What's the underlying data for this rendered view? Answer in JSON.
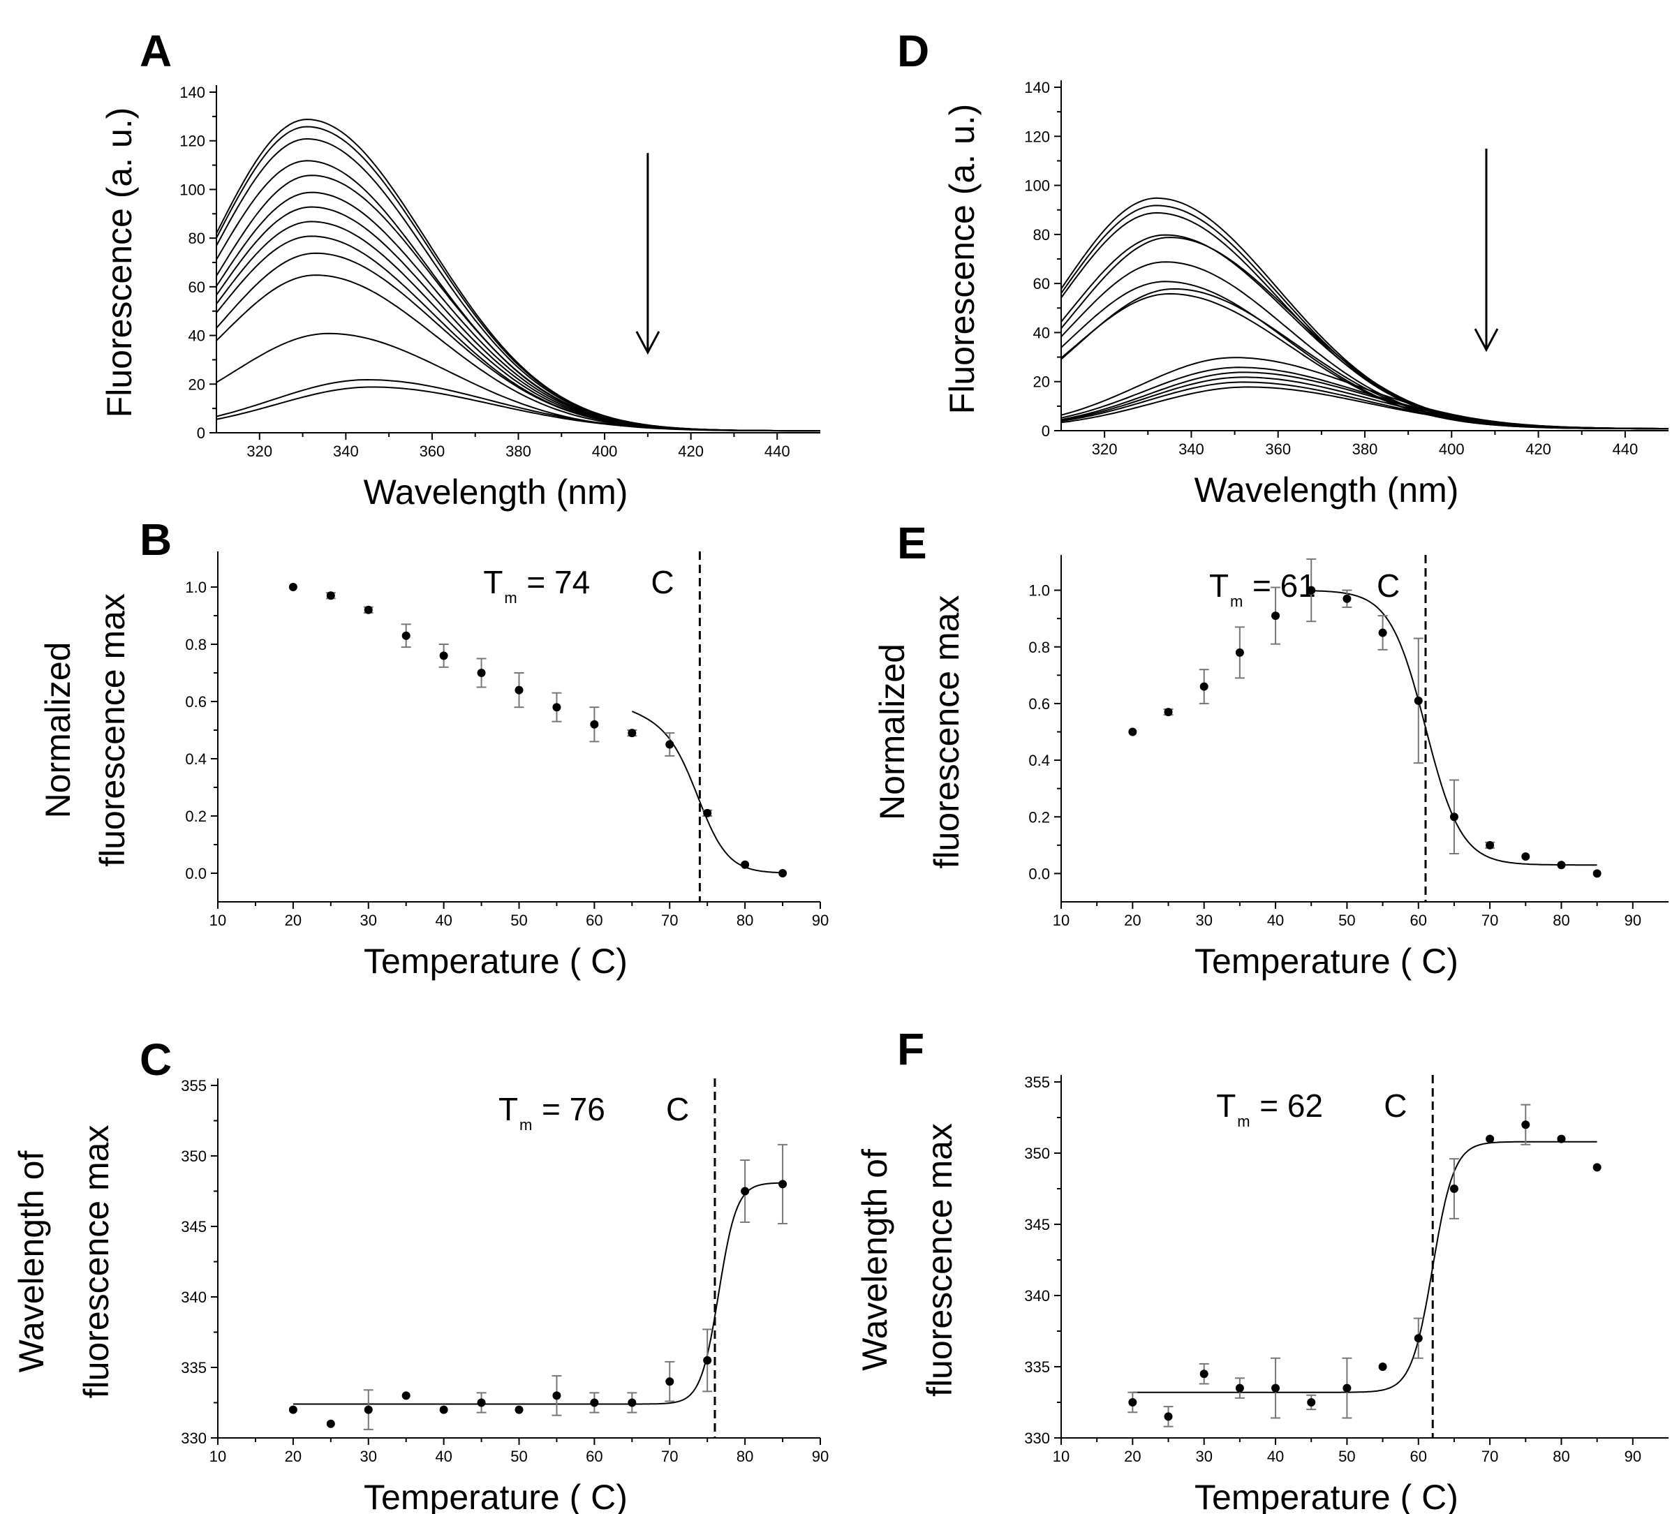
{
  "figure": {
    "panels": [
      {
        "id": "A",
        "letter": "A",
        "type": "spectra",
        "xlabel": "Wavelength (nm)",
        "ylabel": "Fluorescence (a. u.)",
        "xlim": [
          310,
          450
        ],
        "ylim": [
          0,
          140
        ],
        "xticks": [
          320,
          340,
          360,
          380,
          400,
          420,
          440
        ],
        "yticks": [
          0,
          20,
          40,
          60,
          80,
          100,
          120,
          140
        ],
        "arrow": {
          "x": 410,
          "y_from": 115,
          "y_to": 33
        },
        "spectra": [
          {
            "peak_nm": 331,
            "peak": 128
          },
          {
            "peak_nm": 331,
            "peak": 125
          },
          {
            "peak_nm": 331,
            "peak": 120
          },
          {
            "peak_nm": 331,
            "peak": 111
          },
          {
            "peak_nm": 332,
            "peak": 105
          },
          {
            "peak_nm": 332,
            "peak": 98
          },
          {
            "peak_nm": 332,
            "peak": 92
          },
          {
            "peak_nm": 332,
            "peak": 86
          },
          {
            "peak_nm": 332,
            "peak": 80
          },
          {
            "peak_nm": 333,
            "peak": 73
          },
          {
            "peak_nm": 333,
            "peak": 64
          },
          {
            "peak_nm": 336,
            "peak": 40
          },
          {
            "peak_nm": 345,
            "peak": 21
          },
          {
            "peak_nm": 346,
            "peak": 18
          }
        ]
      },
      {
        "id": "D",
        "letter": "D",
        "type": "spectra",
        "xlabel": "Wavelength (nm)",
        "ylabel": "Fluorescence (a. u.)",
        "xlim": [
          310,
          450
        ],
        "ylim": [
          0,
          140
        ],
        "xticks": [
          320,
          340,
          360,
          380,
          400,
          420,
          440
        ],
        "yticks": [
          0,
          20,
          40,
          60,
          80,
          100,
          120,
          140
        ],
        "arrow": {
          "x": 408,
          "y_from": 115,
          "y_to": 33
        },
        "spectra": [
          {
            "peak_nm": 332,
            "peak": 94
          },
          {
            "peak_nm": 332,
            "peak": 91
          },
          {
            "peak_nm": 332,
            "peak": 88
          },
          {
            "peak_nm": 334,
            "peak": 79
          },
          {
            "peak_nm": 335,
            "peak": 78
          },
          {
            "peak_nm": 334,
            "peak": 68
          },
          {
            "peak_nm": 334,
            "peak": 60
          },
          {
            "peak_nm": 335,
            "peak": 55
          },
          {
            "peak_nm": 336,
            "peak": 57
          },
          {
            "peak_nm": 350,
            "peak": 29
          },
          {
            "peak_nm": 351,
            "peak": 25
          },
          {
            "peak_nm": 352,
            "peak": 23
          },
          {
            "peak_nm": 352,
            "peak": 21
          },
          {
            "peak_nm": 352,
            "peak": 19
          },
          {
            "peak_nm": 353,
            "peak": 17
          }
        ]
      },
      {
        "id": "B",
        "letter": "B",
        "type": "melt",
        "xlabel": "Temperature ( C)",
        "ylabel": [
          "Normalized",
          "fluorescence max"
        ],
        "xlim": [
          10,
          90
        ],
        "ylim": [
          -0.1,
          1.1
        ],
        "xticks": [
          10,
          20,
          30,
          40,
          50,
          60,
          70,
          80,
          90
        ],
        "yticks": [
          0.0,
          0.2,
          0.4,
          0.6,
          0.8,
          1.0
        ],
        "ytick_labels": [
          "0.0",
          "0.2",
          "0.4",
          "0.6",
          "0.8",
          "1.0"
        ],
        "tm_label": {
          "prefix": "T",
          "sub": "m",
          "value": " = 74",
          "unit": "C"
        },
        "tm": 74,
        "x": [
          20,
          25,
          30,
          35,
          40,
          45,
          50,
          55,
          60,
          65,
          70,
          75,
          80,
          85
        ],
        "y": [
          1.0,
          0.97,
          0.92,
          0.83,
          0.76,
          0.7,
          0.64,
          0.58,
          0.52,
          0.49,
          0.45,
          0.21,
          0.03,
          0.0
        ],
        "err": [
          0.0,
          0.01,
          0.01,
          0.04,
          0.04,
          0.05,
          0.06,
          0.05,
          0.06,
          0.01,
          0.04,
          0.01,
          0.0,
          0.0
        ],
        "fit": {
          "model": "sigmoid",
          "from": 65,
          "to": 85,
          "top": 0.5,
          "bottom": 0.0,
          "tm": 74,
          "slope": 2.0,
          "pre_slope": 0.008
        }
      },
      {
        "id": "E",
        "letter": "E",
        "type": "melt",
        "xlabel": "Temperature ( C)",
        "ylabel": [
          "Normalized",
          "fluorescence max"
        ],
        "xlim": [
          10,
          95
        ],
        "ylim": [
          -0.1,
          1.1
        ],
        "xticks": [
          10,
          20,
          30,
          40,
          50,
          60,
          70,
          80,
          90
        ],
        "yticks": [
          0.0,
          0.2,
          0.4,
          0.6,
          0.8,
          1.0
        ],
        "ytick_labels": [
          "0.0",
          "0.2",
          "0.4",
          "0.6",
          "0.8",
          "1.0"
        ],
        "tm_label": {
          "prefix": "T",
          "sub": "m",
          "value": " = 61",
          "unit": "C"
        },
        "tm": 61,
        "x": [
          20,
          25,
          30,
          35,
          40,
          45,
          50,
          55,
          60,
          65,
          70,
          75,
          80,
          85
        ],
        "y": [
          0.5,
          0.57,
          0.66,
          0.78,
          0.91,
          1.0,
          0.97,
          0.85,
          0.61,
          0.2,
          0.1,
          0.06,
          0.03,
          0.0
        ],
        "err": [
          0.0,
          0.01,
          0.06,
          0.09,
          0.1,
          0.11,
          0.03,
          0.06,
          0.22,
          0.13,
          0.01,
          0.0,
          0.0,
          0.0
        ],
        "fit": {
          "model": "sigmoid",
          "from": 45,
          "to": 85,
          "top": 1.0,
          "bottom": 0.03,
          "tm": 61,
          "slope": 2.5,
          "pre_slope": 0.0
        }
      },
      {
        "id": "C",
        "letter": "C",
        "type": "melt",
        "xlabel": "Temperature ( C)",
        "ylabel": [
          "Wavelength of",
          "fluorescence max"
        ],
        "xlim": [
          10,
          90
        ],
        "ylim": [
          330,
          355
        ],
        "xticks": [
          10,
          20,
          30,
          40,
          50,
          60,
          70,
          80,
          90
        ],
        "yticks": [
          330,
          335,
          340,
          345,
          350,
          355
        ],
        "ytick_labels": [
          "330",
          "335",
          "340",
          "345",
          "350",
          "355"
        ],
        "tm_label": {
          "prefix": "T",
          "sub": "m",
          "value": " = 76",
          "unit": "C"
        },
        "tm": 76,
        "x": [
          20,
          25,
          30,
          35,
          40,
          45,
          50,
          55,
          60,
          65,
          70,
          75,
          80,
          85
        ],
        "y": [
          332,
          331,
          332,
          333,
          332,
          332.5,
          332,
          333,
          332.5,
          332.5,
          334,
          335.5,
          347.5,
          348
        ],
        "err": [
          0,
          0,
          1.4,
          0,
          0,
          0.7,
          0,
          1.4,
          0.7,
          0.7,
          1.4,
          2.2,
          2.2,
          2.8
        ],
        "fit": {
          "model": "sigmoid",
          "from": 20,
          "to": 85,
          "top": 332.4,
          "bottom": 348.1,
          "tm": 76.5,
          "slope": 1.2,
          "pre_slope": 0.0
        }
      },
      {
        "id": "F",
        "letter": "F",
        "type": "melt",
        "xlabel": "Temperature ( C)",
        "ylabel": [
          "Wavelength of",
          "fluorescence max"
        ],
        "xlim": [
          10,
          95
        ],
        "ylim": [
          330,
          355
        ],
        "xticks": [
          10,
          20,
          30,
          40,
          50,
          60,
          70,
          80,
          90
        ],
        "yticks": [
          330,
          335,
          340,
          345,
          350,
          355
        ],
        "ytick_labels": [
          "330",
          "335",
          "340",
          "345",
          "350",
          "355"
        ],
        "tm_label": {
          "prefix": "T",
          "sub": "m",
          "value": " = 62",
          "unit": "C"
        },
        "tm": 62,
        "x": [
          20,
          25,
          30,
          35,
          40,
          45,
          50,
          55,
          60,
          65,
          70,
          75,
          80,
          85
        ],
        "y": [
          332.5,
          331.5,
          334.5,
          333.5,
          333.5,
          332.5,
          333.5,
          335,
          337,
          347.5,
          351,
          352,
          351,
          349
        ],
        "err": [
          0.7,
          0.7,
          0.7,
          0.7,
          2.1,
          0.5,
          2.1,
          0,
          1.4,
          2.1,
          0,
          1.4,
          0,
          0
        ],
        "fit": {
          "model": "sigmoid",
          "from": 20,
          "to": 85,
          "top": 333.2,
          "bottom": 350.8,
          "tm": 62,
          "slope": 1.5,
          "pre_slope": 0.0
        }
      }
    ]
  },
  "chart_data": [
    {
      "type": "line",
      "title": "A",
      "xlabel": "Wavelength (nm)",
      "ylabel": "Fluorescence (a. u.)",
      "xlim": [
        310,
        450
      ],
      "ylim": [
        0,
        140
      ],
      "series_peak_nm": [
        331,
        331,
        331,
        331,
        332,
        332,
        332,
        332,
        332,
        333,
        333,
        336,
        345,
        346
      ],
      "series_peak_fluorescence": [
        128,
        125,
        120,
        111,
        105,
        98,
        92,
        86,
        80,
        73,
        64,
        40,
        21,
        18
      ]
    },
    {
      "type": "line",
      "title": "D",
      "xlabel": "Wavelength (nm)",
      "ylabel": "Fluorescence (a. u.)",
      "xlim": [
        310,
        450
      ],
      "ylim": [
        0,
        140
      ],
      "series_peak_nm": [
        332,
        332,
        332,
        334,
        335,
        334,
        334,
        335,
        336,
        350,
        351,
        352,
        352,
        352,
        353
      ],
      "series_peak_fluorescence": [
        94,
        91,
        88,
        79,
        78,
        68,
        60,
        55,
        57,
        29,
        25,
        23,
        21,
        19,
        17
      ]
    },
    {
      "type": "scatter",
      "title": "B",
      "xlabel": "Temperature ( C)",
      "ylabel": "Normalized fluorescence max",
      "tm": 74,
      "x": [
        20,
        25,
        30,
        35,
        40,
        45,
        50,
        55,
        60,
        65,
        70,
        75,
        80,
        85
      ],
      "y": [
        1.0,
        0.97,
        0.92,
        0.83,
        0.76,
        0.7,
        0.64,
        0.58,
        0.52,
        0.49,
        0.45,
        0.21,
        0.03,
        0.0
      ]
    },
    {
      "type": "scatter",
      "title": "E",
      "xlabel": "Temperature ( C)",
      "ylabel": "Normalized fluorescence max",
      "tm": 61,
      "x": [
        20,
        25,
        30,
        35,
        40,
        45,
        50,
        55,
        60,
        65,
        70,
        75,
        80,
        85
      ],
      "y": [
        0.5,
        0.57,
        0.66,
        0.78,
        0.91,
        1.0,
        0.97,
        0.85,
        0.61,
        0.2,
        0.1,
        0.06,
        0.03,
        0.0
      ]
    },
    {
      "type": "scatter",
      "title": "C",
      "xlabel": "Temperature ( C)",
      "ylabel": "Wavelength of fluorescence max",
      "tm": 76,
      "x": [
        20,
        25,
        30,
        35,
        40,
        45,
        50,
        55,
        60,
        65,
        70,
        75,
        80,
        85
      ],
      "y": [
        332,
        331,
        332,
        333,
        332,
        332.5,
        332,
        333,
        332.5,
        332.5,
        334,
        335.5,
        347.5,
        348
      ]
    },
    {
      "type": "scatter",
      "title": "F",
      "xlabel": "Temperature ( C)",
      "ylabel": "Wavelength of fluorescence max",
      "tm": 62,
      "x": [
        20,
        25,
        30,
        35,
        40,
        45,
        50,
        55,
        60,
        65,
        70,
        75,
        80,
        85
      ],
      "y": [
        332.5,
        331.5,
        334.5,
        333.5,
        333.5,
        332.5,
        333.5,
        335,
        337,
        347.5,
        351,
        352,
        351,
        349
      ]
    }
  ]
}
